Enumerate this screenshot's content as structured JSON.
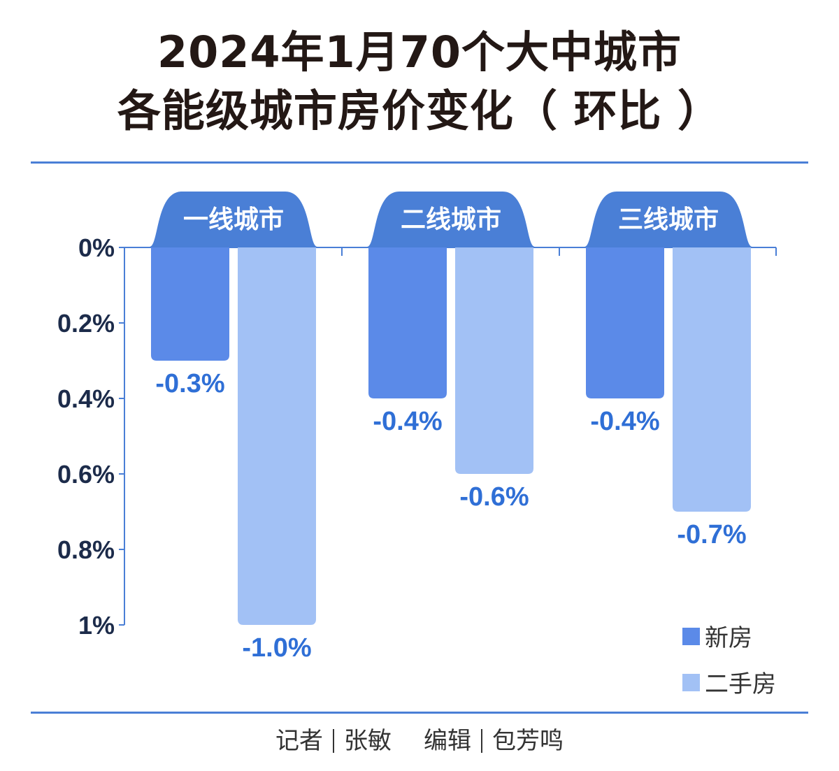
{
  "chart_data": {
    "type": "bar",
    "title": [
      "2024年1月70个大中城市",
      "各能级城市房价变化（ 环比 ）"
    ],
    "categories": [
      "一线城市",
      "二线城市",
      "三线城市"
    ],
    "series": [
      {
        "name": "新房",
        "values": [
          -0.3,
          -0.4,
          -0.4
        ],
        "labels": [
          "-0.3%",
          "-0.4%",
          "-0.4%"
        ],
        "color": "#5b8ae8"
      },
      {
        "name": "二手房",
        "values": [
          -1.0,
          -0.6,
          -0.7
        ],
        "labels": [
          "-1.0%",
          "-0.6%",
          "-0.7%"
        ],
        "color": "#a2c1f5"
      }
    ],
    "yticks": [
      "0%",
      "0.2%",
      "0.4%",
      "0.6%",
      "0.8%",
      "1%"
    ],
    "ytick_values": [
      0,
      0.2,
      0.4,
      0.6,
      0.8,
      1.0
    ],
    "ylim": [
      0,
      1.0
    ],
    "axis_inverted": true,
    "legend_position": "bottom-right",
    "category_tab_color": "#4a7fd6",
    "label_color": "#2f6fd6",
    "axis_color": "#4a7fd6",
    "tick_label_color": "#1c2b4a"
  },
  "footer": {
    "reporter_label": "记者",
    "reporter": "张敏",
    "editor_label": "编辑",
    "editor": "包芳鸣"
  }
}
